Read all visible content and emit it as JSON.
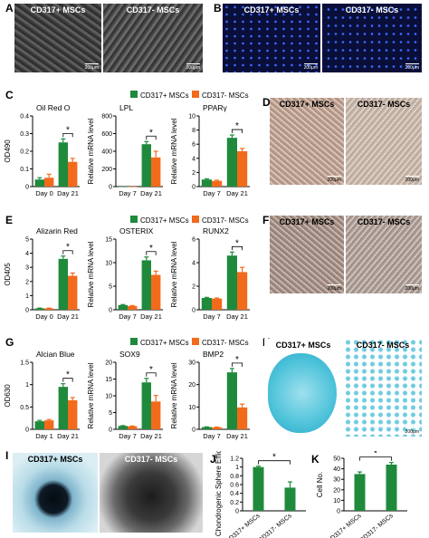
{
  "panels": {
    "A": {
      "letter": "A",
      "left": "CD317+ MSCs",
      "right": "CD317- MSCs",
      "scale": "200μm"
    },
    "B": {
      "letter": "B",
      "left": "CD317+ MSCs",
      "right": "CD317- MSCs",
      "scale": "200μm"
    },
    "C": {
      "letter": "C"
    },
    "D": {
      "letter": "D",
      "left": "CD317+ MSCs",
      "right": "CD317- MSCs",
      "scale": "200μm"
    },
    "E": {
      "letter": "E"
    },
    "F": {
      "letter": "F",
      "left": "CD317+ MSCs",
      "right": "CD317- MSCs",
      "scale": "200μm"
    },
    "G": {
      "letter": "G"
    },
    "H": {
      "letter": "H",
      "left": "CD317+ MSCs",
      "right": "CD317- MSCs",
      "scale": "200μm"
    },
    "I": {
      "letter": "I",
      "left": "CD317+ MSCs",
      "right": "CD317- MSCs"
    },
    "J": {
      "letter": "J"
    },
    "K": {
      "letter": "K"
    }
  },
  "legend": {
    "pos": "CD317+ MSCs",
    "neg": "CD317- MSCs",
    "pos_color": "#1f8a3c",
    "neg_color": "#f26a1b"
  },
  "chart_data": [
    {
      "id": "c1",
      "type": "bar",
      "title": "Oil Red O",
      "ylabel": "OD490",
      "categories": [
        "Day 0",
        "Day 21"
      ],
      "ylim": [
        0,
        0.4
      ],
      "yticks": [
        0.0,
        0.1,
        0.2,
        0.3,
        0.4
      ],
      "series": [
        {
          "name": "CD317+ MSCs",
          "values": [
            0.04,
            0.25
          ],
          "errors": [
            0.01,
            0.02
          ]
        },
        {
          "name": "CD317- MSCs",
          "values": [
            0.05,
            0.14
          ],
          "errors": [
            0.02,
            0.02
          ]
        }
      ],
      "sig": [
        1
      ]
    },
    {
      "id": "c2",
      "type": "bar",
      "title": "LPL",
      "ylabel": "Relative mRNA level",
      "categories": [
        "Day 7",
        "Day 21"
      ],
      "ylim": [
        0,
        800
      ],
      "yticks": [
        0,
        200,
        400,
        600,
        800
      ],
      "series": [
        {
          "name": "CD317+ MSCs",
          "values": [
            1,
            480
          ],
          "errors": [
            0,
            30
          ]
        },
        {
          "name": "CD317- MSCs",
          "values": [
            1,
            330
          ],
          "errors": [
            0,
            70
          ]
        }
      ],
      "sig": [
        1
      ]
    },
    {
      "id": "c3",
      "type": "bar",
      "title": "PPARγ",
      "ylabel": "Relative mRNA level",
      "categories": [
        "Day 7",
        "Day 21"
      ],
      "ylim": [
        0,
        10
      ],
      "yticks": [
        0,
        2,
        4,
        6,
        8,
        10
      ],
      "series": [
        {
          "name": "CD317+ MSCs",
          "values": [
            1,
            6.9
          ],
          "errors": [
            0.1,
            0.4
          ]
        },
        {
          "name": "CD317- MSCs",
          "values": [
            0.8,
            5.0
          ],
          "errors": [
            0.1,
            0.4
          ]
        }
      ],
      "sig": [
        1
      ]
    },
    {
      "id": "e1",
      "type": "bar",
      "title": "Alizarin Red",
      "ylabel": "OD405",
      "categories": [
        "Day 0",
        "Day 21"
      ],
      "ylim": [
        0,
        5
      ],
      "yticks": [
        0,
        1,
        2,
        3,
        4,
        5
      ],
      "series": [
        {
          "name": "CD317+ MSCs",
          "values": [
            0.1,
            3.6
          ],
          "errors": [
            0.02,
            0.2
          ]
        },
        {
          "name": "CD317- MSCs",
          "values": [
            0.1,
            2.4
          ],
          "errors": [
            0.02,
            0.2
          ]
        }
      ],
      "sig": [
        1
      ]
    },
    {
      "id": "e2",
      "type": "bar",
      "title": "OSTERIX",
      "ylabel": "Relative mRNA level",
      "categories": [
        "Day 7",
        "Day 21"
      ],
      "ylim": [
        0,
        15
      ],
      "yticks": [
        0,
        5,
        10,
        15
      ],
      "series": [
        {
          "name": "CD317+ MSCs",
          "values": [
            1,
            10.5
          ],
          "errors": [
            0.1,
            0.7
          ]
        },
        {
          "name": "CD317- MSCs",
          "values": [
            0.8,
            7.4
          ],
          "errors": [
            0.1,
            0.8
          ]
        }
      ],
      "sig": [
        1
      ]
    },
    {
      "id": "e3",
      "type": "bar",
      "title": "RUNX2",
      "ylabel": "Relative mRNA level",
      "categories": [
        "Day 7",
        "Day 21"
      ],
      "ylim": [
        0,
        6
      ],
      "yticks": [
        0,
        2,
        4,
        6
      ],
      "series": [
        {
          "name": "CD317+ MSCs",
          "values": [
            1,
            4.6
          ],
          "errors": [
            0.05,
            0.3
          ]
        },
        {
          "name": "CD317- MSCs",
          "values": [
            0.95,
            3.2
          ],
          "errors": [
            0.05,
            0.4
          ]
        }
      ],
      "sig": [
        1
      ]
    },
    {
      "id": "g1",
      "type": "bar",
      "title": "Alcian Blue",
      "ylabel": "OD630",
      "categories": [
        "Day 1",
        "Day 21"
      ],
      "ylim": [
        0,
        1.5
      ],
      "yticks": [
        0.0,
        0.5,
        1.0,
        1.5
      ],
      "series": [
        {
          "name": "CD317+ MSCs",
          "values": [
            0.18,
            0.95
          ],
          "errors": [
            0.02,
            0.07
          ]
        },
        {
          "name": "CD317- MSCs",
          "values": [
            0.2,
            0.65
          ],
          "errors": [
            0.02,
            0.06
          ]
        }
      ],
      "sig": [
        1
      ]
    },
    {
      "id": "g2",
      "type": "bar",
      "title": "SOX9",
      "ylabel": "Relative mRNA level",
      "categories": [
        "Day 7",
        "Day 21"
      ],
      "ylim": [
        0,
        20
      ],
      "yticks": [
        0,
        5,
        10,
        15,
        20
      ],
      "series": [
        {
          "name": "CD317+ MSCs",
          "values": [
            1,
            14
          ],
          "errors": [
            0.1,
            1.2
          ]
        },
        {
          "name": "CD317- MSCs",
          "values": [
            0.9,
            8.3
          ],
          "errors": [
            0.1,
            1.8
          ]
        }
      ],
      "sig": [
        1
      ]
    },
    {
      "id": "g3",
      "type": "bar",
      "title": "BMP2",
      "ylabel": "Relative mRNA level",
      "categories": [
        "Day 7",
        "Day 21"
      ],
      "ylim": [
        0,
        30
      ],
      "yticks": [
        0,
        10,
        20,
        30
      ],
      "series": [
        {
          "name": "CD317+ MSCs",
          "values": [
            1,
            25.5
          ],
          "errors": [
            0.1,
            1.7
          ]
        },
        {
          "name": "CD317- MSCs",
          "values": [
            0.9,
            9.8
          ],
          "errors": [
            0.1,
            1.5
          ]
        }
      ],
      "sig": [
        1
      ]
    },
    {
      "id": "j",
      "type": "bar",
      "ylabel": "Chondrogenic Sphere Efficiency",
      "categories": [
        "CD317+ MSCs",
        "CD317- MSCs"
      ],
      "ylim": [
        0,
        1.2
      ],
      "yticks": [
        0.0,
        0.2,
        0.4,
        0.6,
        0.8,
        1.0,
        1.2
      ],
      "series": [
        {
          "values": [
            1.0,
            0.53
          ],
          "errors": [
            0.02,
            0.13
          ]
        }
      ],
      "sig": [
        0
      ]
    },
    {
      "id": "k",
      "type": "bar",
      "ylabel": "Cell No.",
      "categories": [
        "CD317+ MSCs",
        "CD317- MSCs"
      ],
      "ylim": [
        0,
        50
      ],
      "yticks": [
        0,
        10,
        20,
        30,
        40,
        50
      ],
      "series": [
        {
          "values": [
            35,
            44
          ],
          "errors": [
            2,
            2
          ]
        }
      ],
      "sig": [
        0
      ]
    }
  ]
}
